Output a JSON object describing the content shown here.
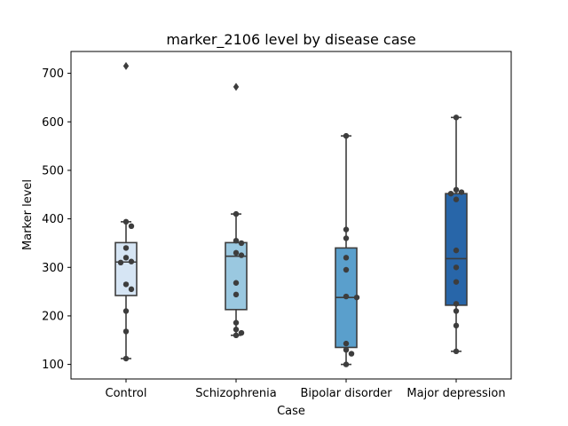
{
  "chart_data": {
    "type": "box",
    "title": "marker_2106 level by disease case",
    "xlabel": "Case",
    "ylabel": "Marker level",
    "ylim": [
      70,
      745
    ],
    "yticks": [
      100,
      200,
      300,
      400,
      500,
      600,
      700
    ],
    "grid": false,
    "legend": "none",
    "categories": [
      "Control",
      "Schizophrenia",
      "Bipolar disorder",
      "Major depression"
    ],
    "colors": [
      "#d6e5f4",
      "#9ac8e0",
      "#5a9fcc",
      "#2866a9"
    ],
    "boxes": [
      {
        "q1": 242,
        "median": 311,
        "q3": 351,
        "whisker_low": 112,
        "whisker_high": 394,
        "outliers": [
          715
        ]
      },
      {
        "q1": 213,
        "median": 323,
        "q3": 351,
        "whisker_low": 160,
        "whisker_high": 410,
        "outliers": [
          672
        ]
      },
      {
        "q1": 135,
        "median": 238,
        "q3": 340,
        "whisker_low": 100,
        "whisker_high": 571,
        "outliers": []
      },
      {
        "q1": 222,
        "median": 318,
        "q3": 452,
        "whisker_low": 127,
        "whisker_high": 609,
        "outliers": []
      }
    ],
    "points": [
      [
        394,
        385,
        340,
        320,
        312,
        310,
        265,
        255,
        210,
        168,
        112
      ],
      [
        410,
        355,
        350,
        330,
        325,
        268,
        244,
        186,
        172,
        165,
        160
      ],
      [
        571,
        378,
        360,
        320,
        295,
        240,
        238,
        143,
        130,
        122,
        100
      ],
      [
        609,
        460,
        455,
        452,
        440,
        335,
        300,
        270,
        225,
        210,
        180,
        127
      ]
    ]
  }
}
